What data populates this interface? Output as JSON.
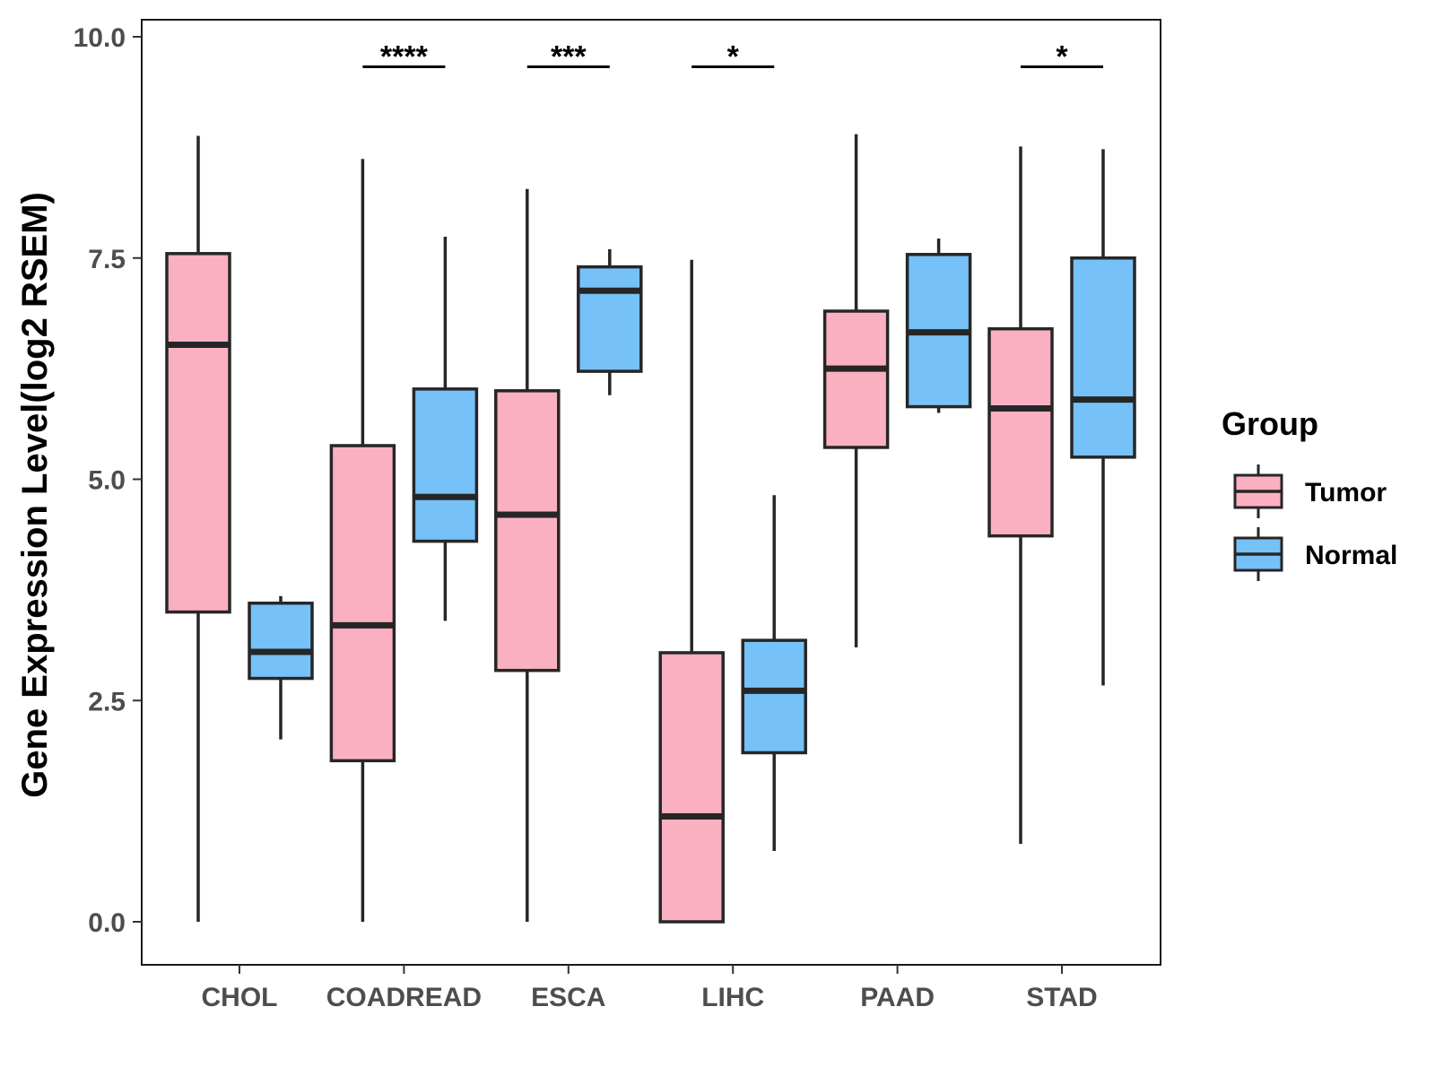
{
  "chart_data": {
    "type": "boxplot",
    "ylabel": "Gene Expression Level(log2 RSEM)",
    "xlabel": "",
    "ylim": [
      -0.45,
      10.2
    ],
    "yticks": [
      0.0,
      2.5,
      5.0,
      7.5,
      10.0
    ],
    "ytick_labels": [
      "0.0",
      "2.5",
      "5.0",
      "7.5",
      "10.0"
    ],
    "categories": [
      "CHOL",
      "COADREAD",
      "ESCA",
      "LIHC",
      "PAAD",
      "STAD"
    ],
    "legend": {
      "title": "Group",
      "position": "right",
      "entries": [
        "Tumor",
        "Normal"
      ]
    },
    "colors": {
      "Tumor": "#fbb0c1",
      "Normal": "#76c1f8",
      "outline": "#262626"
    },
    "series": [
      {
        "name": "Tumor",
        "boxes": [
          {
            "category": "CHOL",
            "min": 0.0,
            "q1": 3.5,
            "median": 6.52,
            "q3": 7.55,
            "max": 8.88
          },
          {
            "category": "COADREAD",
            "min": 0.0,
            "q1": 1.82,
            "median": 3.35,
            "q3": 5.38,
            "max": 8.62
          },
          {
            "category": "ESCA",
            "min": 0.0,
            "q1": 2.84,
            "median": 4.6,
            "q3": 6.0,
            "max": 8.28
          },
          {
            "category": "LIHC",
            "min": 0.0,
            "q1": 0.0,
            "median": 1.19,
            "q3": 3.04,
            "max": 7.48
          },
          {
            "category": "PAAD",
            "min": 3.1,
            "q1": 5.36,
            "median": 6.25,
            "q3": 6.9,
            "max": 8.9
          },
          {
            "category": "STAD",
            "min": 0.88,
            "q1": 4.36,
            "median": 5.8,
            "q3": 6.7,
            "max": 8.76
          }
        ]
      },
      {
        "name": "Normal",
        "boxes": [
          {
            "category": "CHOL",
            "min": 2.06,
            "q1": 2.75,
            "median": 3.05,
            "q3": 3.6,
            "max": 3.68
          },
          {
            "category": "COADREAD",
            "min": 3.4,
            "q1": 4.3,
            "median": 4.8,
            "q3": 6.02,
            "max": 7.74
          },
          {
            "category": "ESCA",
            "min": 5.95,
            "q1": 6.22,
            "median": 7.13,
            "q3": 7.4,
            "max": 7.6
          },
          {
            "category": "LIHC",
            "min": 0.8,
            "q1": 1.91,
            "median": 2.61,
            "q3": 3.18,
            "max": 4.82
          },
          {
            "category": "PAAD",
            "min": 5.75,
            "q1": 5.82,
            "median": 6.66,
            "q3": 7.54,
            "max": 7.72
          },
          {
            "category": "STAD",
            "min": 2.67,
            "q1": 5.25,
            "median": 5.9,
            "q3": 7.5,
            "max": 8.73
          }
        ]
      }
    ],
    "significance": [
      {
        "category": "COADREAD",
        "label": "****"
      },
      {
        "category": "ESCA",
        "label": "***"
      },
      {
        "category": "LIHC",
        "label": "*"
      },
      {
        "category": "STAD",
        "label": "*"
      }
    ],
    "significance_level": 9.66
  }
}
